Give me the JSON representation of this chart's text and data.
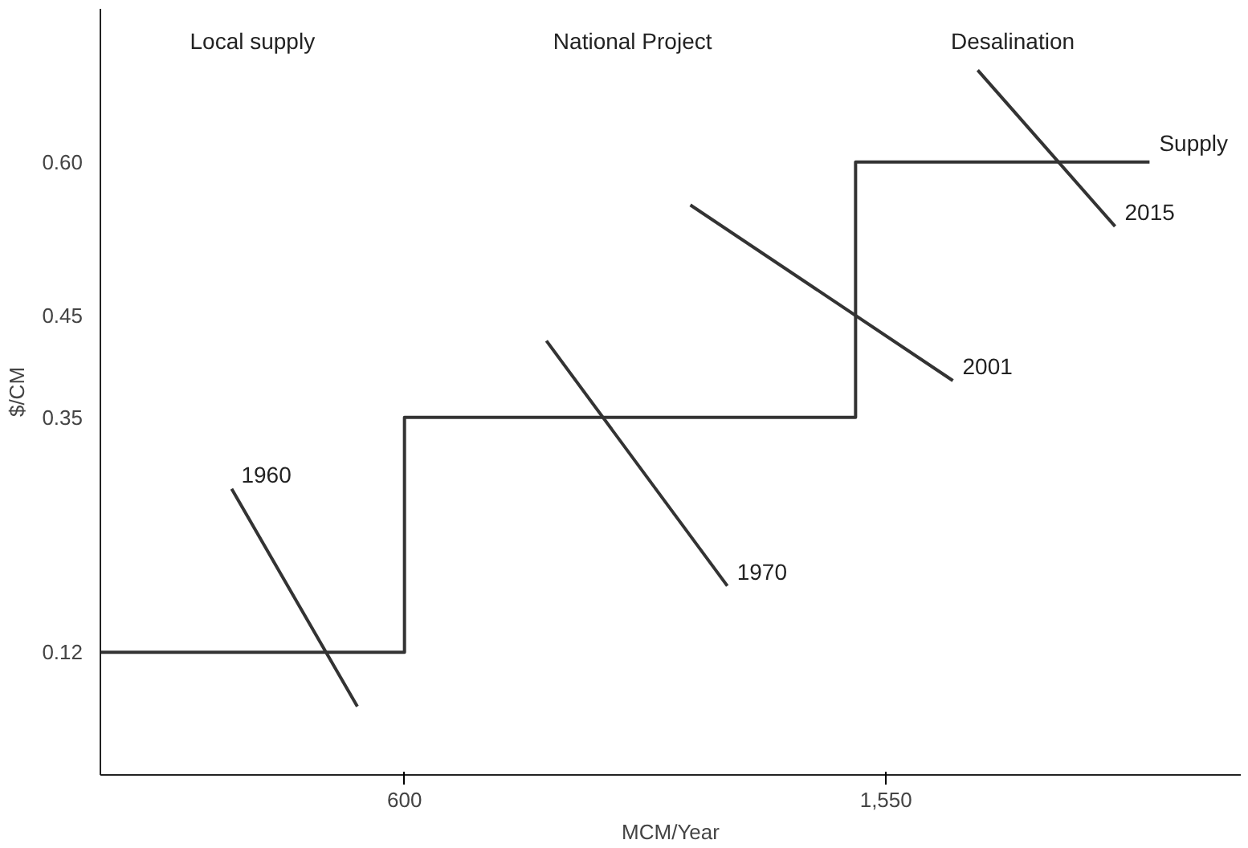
{
  "chart_data": {
    "type": "line",
    "xlabel": "MCM/Year",
    "ylabel": "$/CM",
    "xlim": [
      0,
      2250
    ],
    "ylim": [
      0,
      0.75
    ],
    "xticks": [
      600,
      {
        "value": 1550,
        "label": "1,550"
      }
    ],
    "yticks": [
      {
        "value": 0.12,
        "label": "0.12"
      },
      {
        "value": 0.35,
        "label": "0.35"
      },
      {
        "value": 0.45,
        "label": "0.45"
      },
      {
        "value": 0.6,
        "label": "0.60"
      }
    ],
    "grid": false,
    "marker": "none",
    "line_style": "solid",
    "series": [
      {
        "name": "Supply",
        "type": "step",
        "color": "#333333",
        "x": [
          0,
          600,
          1490,
          2070
        ],
        "values": [
          0.12,
          0.35,
          0.6,
          0.6
        ]
      },
      {
        "name": "1960",
        "color": "#333333",
        "x": [
          507,
          259
        ],
        "values": [
          0.067,
          0.28
        ]
      },
      {
        "name": "1970",
        "color": "#333333",
        "x": [
          880,
          1237
        ],
        "values": [
          0.425,
          0.185
        ]
      },
      {
        "name": "2001",
        "color": "#333333",
        "x": [
          1164,
          1682
        ],
        "values": [
          0.558,
          0.386
        ]
      },
      {
        "name": "2015",
        "color": "#333333",
        "x": [
          1731,
          2002
        ],
        "values": [
          0.69,
          0.537
        ]
      }
    ],
    "annotations": [
      "Local supply",
      "National Project",
      "Desalination"
    ]
  }
}
